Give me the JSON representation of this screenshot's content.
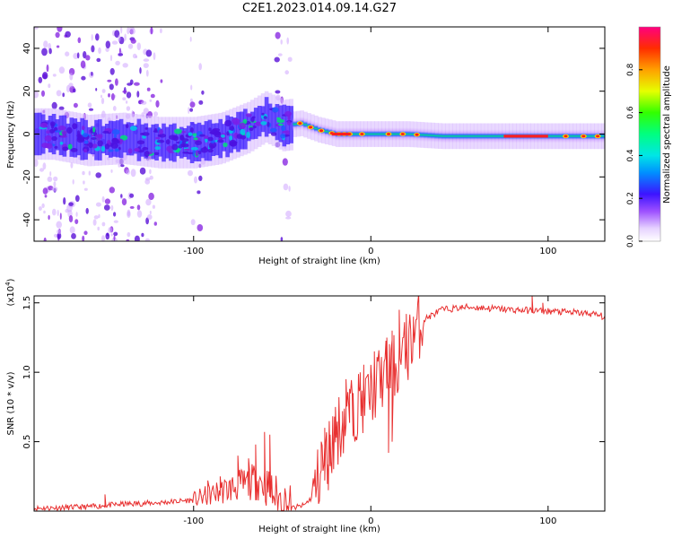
{
  "title": "C2E1.2023.014.09.14.G27",
  "chart_data": [
    {
      "type": "heatmap",
      "xlabel": "Height of straight line (km)",
      "ylabel": "Frequency (Hz)",
      "xlim": [
        -190,
        132
      ],
      "ylim": [
        -50,
        50
      ],
      "xticks": [
        {
          "v": -100,
          "label": "-100"
        },
        {
          "v": 0,
          "label": "0"
        },
        {
          "v": 100,
          "label": "100"
        }
      ],
      "yticks": [
        {
          "v": -40,
          "label": "-40"
        },
        {
          "v": -20,
          "label": "-20"
        },
        {
          "v": 0,
          "label": "0"
        },
        {
          "v": 20,
          "label": "20"
        },
        {
          "v": 40,
          "label": "40"
        }
      ],
      "ridge": [
        [
          -180,
          0
        ],
        [
          -160,
          -3
        ],
        [
          -140,
          -2
        ],
        [
          -120,
          -4
        ],
        [
          -100,
          -4
        ],
        [
          -85,
          -2
        ],
        [
          -70,
          3
        ],
        [
          -60,
          8
        ],
        [
          -50,
          4
        ],
        [
          -40,
          5
        ],
        [
          -30,
          2
        ],
        [
          -20,
          0
        ],
        [
          -10,
          0
        ],
        [
          0,
          0
        ],
        [
          20,
          0
        ],
        [
          40,
          -1
        ],
        [
          60,
          -1
        ],
        [
          80,
          -1
        ],
        [
          100,
          -1
        ],
        [
          120,
          -1
        ],
        [
          132,
          -1
        ]
      ],
      "colorbar": {
        "label": "Normalized spectral amplitude",
        "range": [
          0,
          1
        ],
        "ticks": [
          {
            "v": 0.0,
            "label": "0.0"
          },
          {
            "v": 0.2,
            "label": "0.2"
          },
          {
            "v": 0.4,
            "label": "0.4"
          },
          {
            "v": 0.6,
            "label": "0.6"
          },
          {
            "v": 0.8,
            "label": "0.8"
          }
        ]
      }
    },
    {
      "type": "line",
      "xlabel": "Height of straight line (km)",
      "ylabel": "SNR (10 * v/v)",
      "multiplier": "(x10",
      "multiplier_exp": "4",
      "multiplier_close": ")",
      "xlim": [
        -190,
        132
      ],
      "ylim": [
        0,
        1.55
      ],
      "xticks": [
        {
          "v": -100,
          "label": "-100"
        },
        {
          "v": 0,
          "label": "0"
        },
        {
          "v": 100,
          "label": "100"
        }
      ],
      "yticks": [
        {
          "v": 0.5,
          "label": "0.5"
        },
        {
          "v": 1.0,
          "label": "1.0"
        },
        {
          "v": 1.5,
          "label": "1.5"
        }
      ],
      "color": "#e83030",
      "series": [
        {
          "name": "SNR",
          "base": [
            [
              -190,
              0.02
            ],
            [
              -160,
              0.03
            ],
            [
              -140,
              0.05
            ],
            [
              -120,
              0.06
            ],
            [
              -100,
              0.08
            ],
            [
              -90,
              0.12
            ],
            [
              -80,
              0.16
            ],
            [
              -70,
              0.2
            ],
            [
              -62,
              0.22
            ],
            [
              -55,
              0.12
            ],
            [
              -45,
              0.02
            ],
            [
              -38,
              0.04
            ],
            [
              -33,
              0.1
            ],
            [
              -28,
              0.3
            ],
            [
              -20,
              0.55
            ],
            [
              -12,
              0.7
            ],
            [
              -5,
              0.8
            ],
            [
              0,
              0.85
            ],
            [
              5,
              0.95
            ],
            [
              10,
              1.0
            ],
            [
              15,
              1.05
            ],
            [
              20,
              1.15
            ],
            [
              25,
              1.3
            ],
            [
              30,
              1.38
            ],
            [
              40,
              1.45
            ],
            [
              55,
              1.47
            ],
            [
              80,
              1.45
            ],
            [
              100,
              1.44
            ],
            [
              115,
              1.43
            ],
            [
              125,
              1.42
            ],
            [
              132,
              1.4
            ]
          ],
          "spikes": [
            [
              -150,
              0.12
            ],
            [
              -92,
              0.22
            ],
            [
              -85,
              0.25
            ],
            [
              -75,
              0.4
            ],
            [
              -69,
              0.38
            ],
            [
              -65,
              0.48
            ],
            [
              -60,
              0.57
            ],
            [
              -57,
              0.55
            ],
            [
              -30,
              0.4
            ],
            [
              -28,
              0.5
            ],
            [
              -26,
              0.6
            ],
            [
              -23,
              0.55
            ],
            [
              -20,
              0.75
            ],
            [
              -18,
              0.82
            ],
            [
              -16,
              0.72
            ],
            [
              -14,
              0.95
            ],
            [
              -12,
              0.88
            ],
            [
              -10,
              0.85
            ],
            [
              -6,
              1.0
            ],
            [
              -4,
              0.92
            ],
            [
              2,
              1.15
            ],
            [
              6,
              1.1
            ],
            [
              9,
              1.25
            ],
            [
              12,
              1.3
            ],
            [
              16,
              1.45
            ],
            [
              20,
              1.42
            ],
            [
              24,
              1.4
            ],
            [
              91,
              1.55
            ],
            [
              97,
              1.5
            ],
            [
              -26,
              0.22
            ],
            [
              -24,
              0.15
            ],
            [
              10,
              0.42
            ],
            [
              12,
              0.5
            ]
          ]
        }
      ]
    }
  ]
}
